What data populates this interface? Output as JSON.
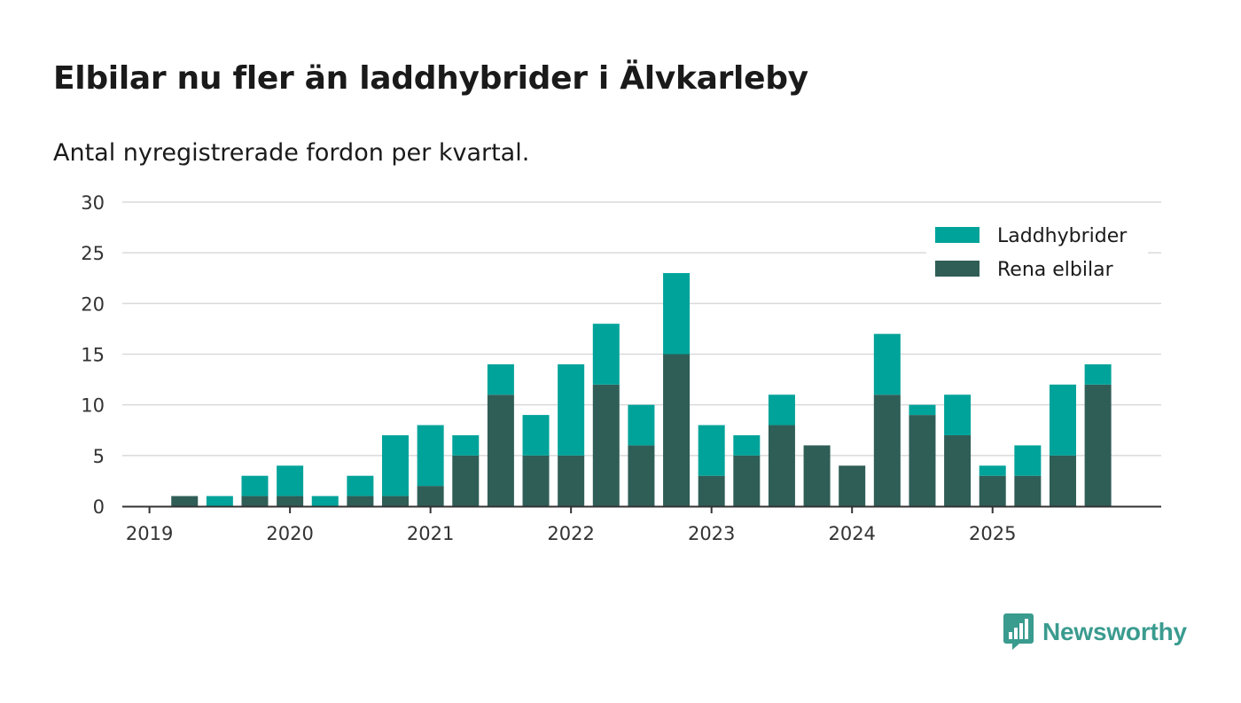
{
  "header": {
    "title": "Elbilar nu fler än laddhybrider i Älvkarleby",
    "subtitle": "Antal nyregistrerade fordon per kvartal."
  },
  "colors": {
    "laddhybrider": "#00a39a",
    "rena_elbilar": "#2f5e57",
    "grid": "#d9d9d9",
    "axis": "#333333",
    "brand": "#3a9b8f"
  },
  "brand": {
    "name": "Newsworthy",
    "icon": "chat-bar-chart-icon"
  },
  "chart_data": {
    "type": "bar",
    "stacked": true,
    "title": "Elbilar nu fler än laddhybrider i Älvkarleby",
    "subtitle": "Antal nyregistrerade fordon per kvartal.",
    "xlabel": "",
    "ylabel": "",
    "ylim": [
      0,
      30
    ],
    "yticks": [
      0,
      5,
      10,
      15,
      20,
      25,
      30
    ],
    "grid": true,
    "legend_position": "top-right",
    "x_range": [
      "2019-Q1",
      "2025-Q4"
    ],
    "xtick_labels": [
      "2019",
      "2020",
      "2021",
      "2022",
      "2023",
      "2024",
      "2025"
    ],
    "categories": [
      "2019-Q1",
      "2019-Q2",
      "2019-Q3",
      "2019-Q4",
      "2020-Q1",
      "2020-Q2",
      "2020-Q3",
      "2020-Q4",
      "2021-Q1",
      "2021-Q2",
      "2021-Q3",
      "2021-Q4",
      "2022-Q1",
      "2022-Q2",
      "2022-Q3",
      "2022-Q4",
      "2023-Q1",
      "2023-Q2",
      "2023-Q3",
      "2023-Q4",
      "2024-Q1",
      "2024-Q2",
      "2024-Q3",
      "2024-Q4",
      "2025-Q1",
      "2025-Q2",
      "2025-Q3",
      "2025-Q4"
    ],
    "series": [
      {
        "name": "Rena elbilar",
        "key": "rena_elbilar",
        "values": [
          0,
          1,
          0,
          1,
          1,
          0,
          1,
          1,
          2,
          5,
          11,
          5,
          5,
          12,
          6,
          15,
          3,
          5,
          8,
          6,
          4,
          11,
          9,
          7,
          3,
          3,
          5,
          12
        ]
      },
      {
        "name": "Laddhybrider",
        "key": "laddhybrider",
        "values": [
          0,
          0,
          1,
          2,
          3,
          1,
          2,
          6,
          6,
          2,
          3,
          4,
          9,
          6,
          4,
          8,
          5,
          2,
          3,
          0,
          0,
          6,
          1,
          4,
          1,
          3,
          7,
          2
        ]
      }
    ],
    "legend_order": [
      "Laddhybrider",
      "Rena elbilar"
    ]
  }
}
